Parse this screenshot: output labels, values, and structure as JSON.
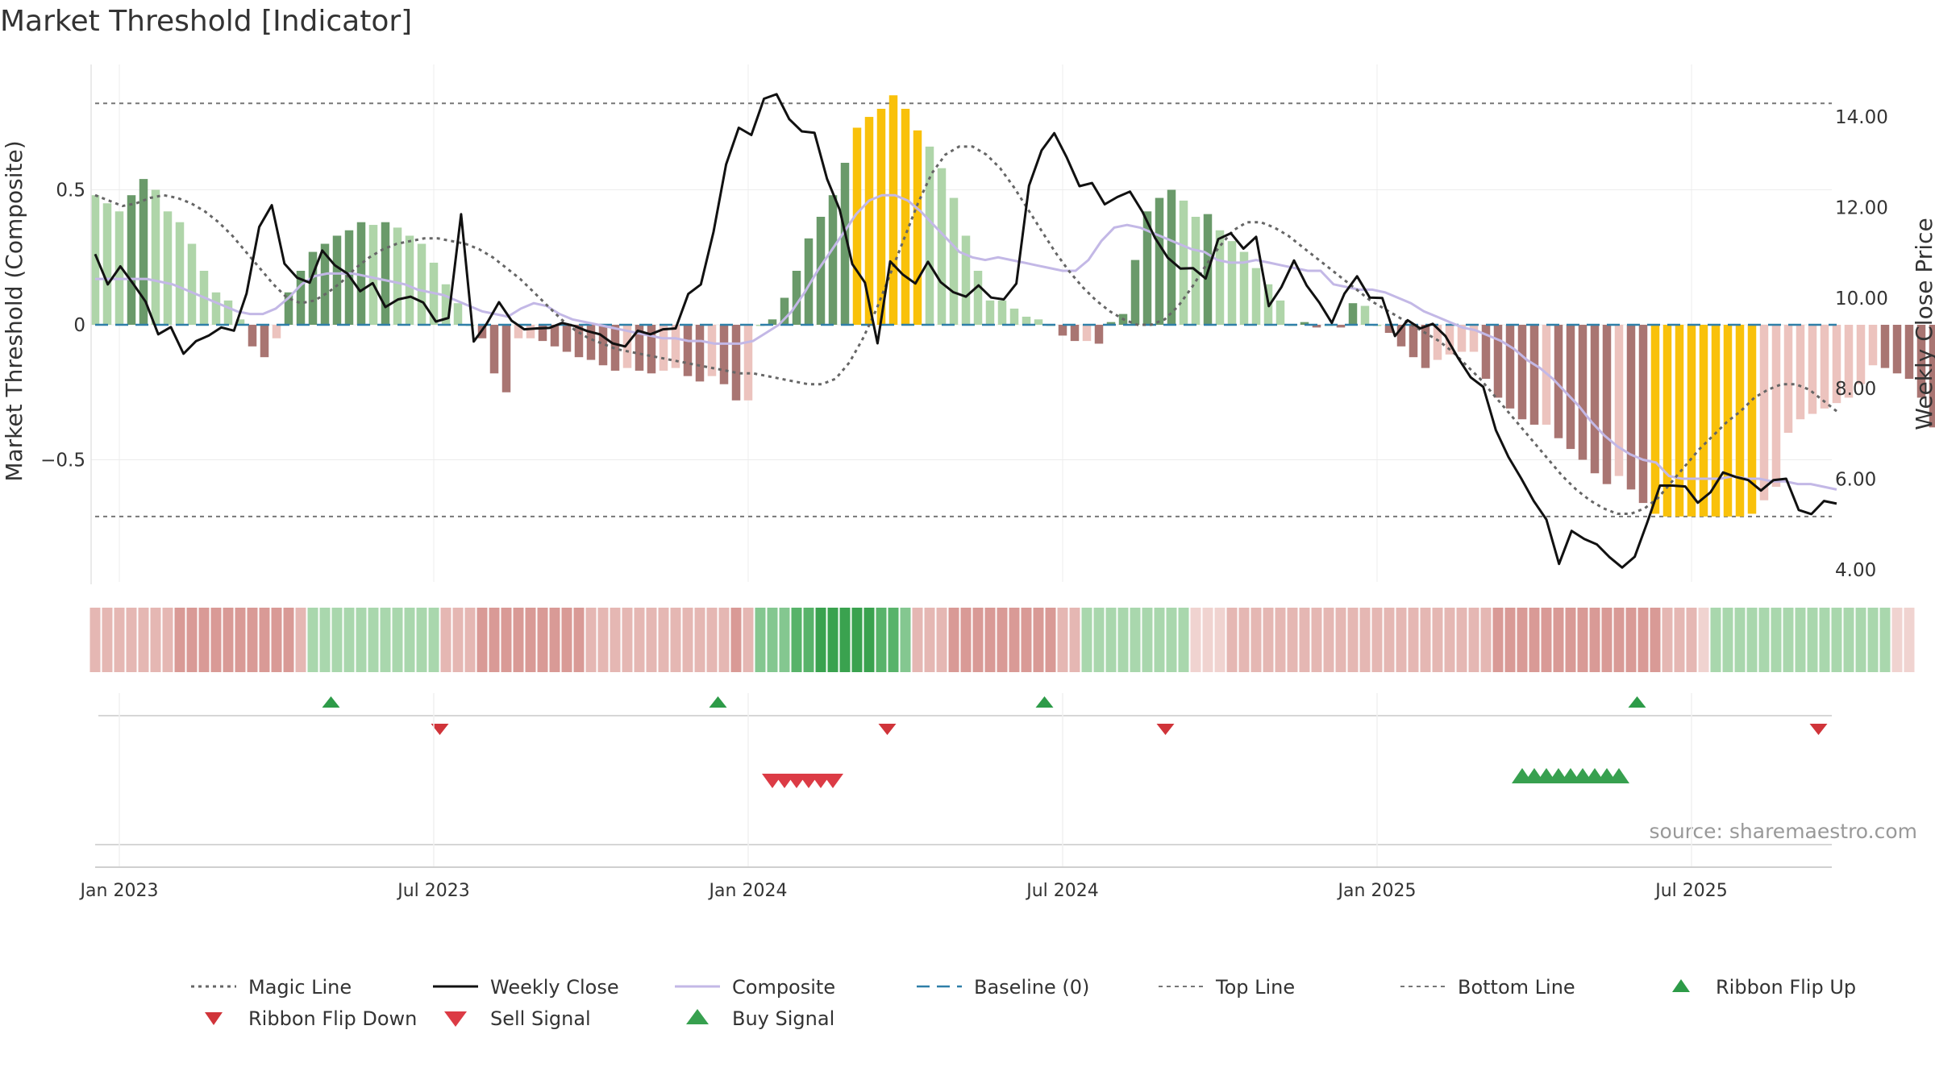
{
  "chart_data": {
    "type": "composite-indicator",
    "title": "Market Threshold [Indicator]",
    "ylabel_left": "Market Threshold (Composite)",
    "ylabel_right": "Weekly Close Price",
    "ylim_left": [
      -0.96,
      0.98
    ],
    "ylim_right": [
      3.5,
      15.0
    ],
    "left_ticks": [
      {
        "value": 0.5,
        "label": "0.5"
      },
      {
        "value": 0,
        "label": "0"
      },
      {
        "value": -0.5,
        "label": "−0.5"
      }
    ],
    "right_ticks": [
      {
        "value": 14,
        "label": "14.00"
      },
      {
        "value": 12,
        "label": "12.00"
      },
      {
        "value": 10,
        "label": "10.00"
      },
      {
        "value": 8,
        "label": "8.00"
      },
      {
        "value": 6,
        "label": "6.00"
      },
      {
        "value": 4,
        "label": "4.00"
      }
    ],
    "x_ticks": [
      {
        "week": 2,
        "label": "Jan 2023"
      },
      {
        "week": 28,
        "label": "Jul 2023"
      },
      {
        "week": 54,
        "label": "Jan 2024"
      },
      {
        "week": 80,
        "label": "Jul 2024"
      },
      {
        "week": 106,
        "label": "Jan 2025"
      },
      {
        "week": 132,
        "label": "Jul 2025"
      }
    ],
    "weeks": 145,
    "top_line": 0.82,
    "bottom_line": -0.71,
    "baseline": 0,
    "composite": [
      0.48,
      0.45,
      0.42,
      0.48,
      0.54,
      0.5,
      0.42,
      0.38,
      0.3,
      0.2,
      0.12,
      0.09,
      0.02,
      -0.08,
      -0.12,
      -0.05,
      0.12,
      0.2,
      0.27,
      0.3,
      0.33,
      0.35,
      0.38,
      0.37,
      0.38,
      0.36,
      0.33,
      0.3,
      0.23,
      0.15,
      0.08,
      0.0,
      -0.05,
      -0.18,
      -0.25,
      -0.05,
      -0.05,
      -0.06,
      -0.08,
      -0.1,
      -0.12,
      -0.13,
      -0.15,
      -0.17,
      -0.16,
      -0.17,
      -0.18,
      -0.17,
      -0.16,
      -0.19,
      -0.21,
      -0.19,
      -0.22,
      -0.28,
      -0.28,
      0.0,
      0.02,
      0.1,
      0.2,
      0.32,
      0.4,
      0.48,
      0.6,
      0.73,
      0.77,
      0.8,
      0.85,
      0.8,
      0.72,
      0.66,
      0.58,
      0.47,
      0.33,
      0.2,
      0.09,
      0.09,
      0.06,
      0.03,
      0.02,
      0.0,
      -0.04,
      -0.06,
      -0.06,
      -0.07,
      0.01,
      0.04,
      0.24,
      0.42,
      0.47,
      0.5,
      0.46,
      0.4,
      0.41,
      0.35,
      0.31,
      0.27,
      0.21,
      0.15,
      0.09,
      0.0,
      0.01,
      -0.01,
      0.0,
      -0.01,
      0.08,
      0.07,
      0.0,
      -0.03,
      -0.08,
      -0.12,
      -0.16,
      -0.13,
      -0.11,
      -0.1,
      -0.1,
      -0.2,
      -0.27,
      -0.31,
      -0.35,
      -0.37,
      -0.37,
      -0.42,
      -0.46,
      -0.5,
      -0.55,
      -0.59,
      -0.56,
      -0.61,
      -0.66,
      -0.7,
      -0.71,
      -0.71,
      -0.71,
      -0.71,
      -0.71,
      -0.71,
      -0.71,
      -0.7,
      -0.65,
      -0.6,
      -0.4,
      -0.35,
      -0.33,
      -0.31,
      -0.29,
      -0.27,
      -0.22,
      -0.15,
      -0.16,
      -0.18,
      -0.2,
      -0.27,
      -0.38,
      -0.4,
      -0.43
    ],
    "composite_line": [
      0.17,
      0.17,
      0.17,
      0.17,
      0.17,
      0.16,
      0.15,
      0.13,
      0.11,
      0.09,
      0.07,
      0.05,
      0.04,
      0.04,
      0.06,
      0.1,
      0.15,
      0.18,
      0.19,
      0.19,
      0.19,
      0.18,
      0.17,
      0.16,
      0.15,
      0.13,
      0.12,
      0.11,
      0.09,
      0.07,
      0.05,
      0.04,
      0.03,
      0.06,
      0.08,
      0.07,
      0.04,
      0.02,
      0.01,
      0.0,
      -0.01,
      -0.02,
      -0.03,
      -0.04,
      -0.05,
      -0.05,
      -0.06,
      -0.06,
      -0.07,
      -0.07,
      -0.07,
      -0.06,
      -0.03,
      0.0,
      0.05,
      0.12,
      0.2,
      0.27,
      0.34,
      0.41,
      0.46,
      0.48,
      0.48,
      0.46,
      0.42,
      0.37,
      0.32,
      0.27,
      0.25,
      0.24,
      0.25,
      0.24,
      0.23,
      0.22,
      0.21,
      0.2,
      0.2,
      0.24,
      0.31,
      0.36,
      0.37,
      0.36,
      0.34,
      0.32,
      0.3,
      0.28,
      0.27,
      0.24,
      0.23,
      0.23,
      0.24,
      0.23,
      0.22,
      0.21,
      0.2,
      0.2,
      0.15,
      0.14,
      0.13,
      0.13,
      0.12,
      0.1,
      0.08,
      0.05,
      0.03,
      0.01,
      -0.01,
      -0.02,
      -0.04,
      -0.06,
      -0.09,
      -0.13,
      -0.16,
      -0.2,
      -0.25,
      -0.3,
      -0.36,
      -0.41,
      -0.45,
      -0.48,
      -0.5,
      -0.51,
      -0.56,
      -0.57,
      -0.57,
      -0.57,
      -0.57,
      -0.56,
      -0.57,
      -0.57,
      -0.58,
      -0.58,
      -0.59,
      -0.59,
      -0.6,
      -0.61
    ],
    "magic_line": [
      0.48,
      0.46,
      0.44,
      0.45,
      0.47,
      0.48,
      0.47,
      0.45,
      0.42,
      0.38,
      0.33,
      0.27,
      0.21,
      0.15,
      0.1,
      0.08,
      0.09,
      0.12,
      0.16,
      0.21,
      0.25,
      0.28,
      0.3,
      0.31,
      0.32,
      0.32,
      0.31,
      0.3,
      0.28,
      0.25,
      0.21,
      0.17,
      0.12,
      0.07,
      0.02,
      -0.02,
      -0.05,
      -0.07,
      -0.09,
      -0.1,
      -0.11,
      -0.12,
      -0.13,
      -0.14,
      -0.15,
      -0.16,
      -0.17,
      -0.18,
      -0.18,
      -0.19,
      -0.2,
      -0.21,
      -0.22,
      -0.22,
      -0.2,
      -0.14,
      -0.05,
      0.06,
      0.19,
      0.32,
      0.45,
      0.56,
      0.63,
      0.66,
      0.66,
      0.63,
      0.58,
      0.51,
      0.43,
      0.35,
      0.27,
      0.2,
      0.14,
      0.09,
      0.05,
      0.02,
      0.0,
      0.0,
      0.02,
      0.07,
      0.14,
      0.22,
      0.29,
      0.35,
      0.38,
      0.38,
      0.36,
      0.33,
      0.29,
      0.25,
      0.21,
      0.17,
      0.13,
      0.09,
      0.06,
      0.03,
      0.0,
      -0.03,
      -0.06,
      -0.1,
      -0.15,
      -0.2,
      -0.26,
      -0.32,
      -0.38,
      -0.44,
      -0.5,
      -0.56,
      -0.61,
      -0.65,
      -0.68,
      -0.7,
      -0.7,
      -0.68,
      -0.64,
      -0.58,
      -0.52,
      -0.46,
      -0.41,
      -0.36,
      -0.32,
      -0.27,
      -0.24,
      -0.22,
      -0.22,
      -0.24,
      -0.28,
      -0.32
    ],
    "price": [
      10.97,
      10.3,
      10.7,
      10.32,
      9.92,
      9.2,
      9.36,
      8.77,
      9.05,
      9.17,
      9.35,
      9.28,
      10.1,
      11.57,
      12.05,
      10.76,
      10.45,
      10.34,
      11.05,
      10.72,
      10.54,
      10.15,
      10.33,
      9.8,
      9.97,
      10.03,
      9.9,
      9.48,
      9.56,
      11.85,
      9.04,
      9.42,
      9.91,
      9.5,
      9.31,
      9.33,
      9.34,
      9.45,
      9.38,
      9.27,
      9.2,
      9.0,
      8.93,
      9.28,
      9.2,
      9.31,
      9.33,
      10.09,
      10.3,
      11.46,
      12.95,
      13.76,
      13.6,
      14.4,
      14.5,
      13.95,
      13.68,
      13.65,
      12.63,
      11.95,
      10.75,
      10.34,
      9.0,
      10.81,
      10.52,
      10.32,
      10.8,
      10.35,
      10.13,
      10.03,
      10.28,
      10.01,
      9.97,
      10.32,
      12.48,
      13.26,
      13.64,
      13.1,
      12.47,
      12.54,
      12.07,
      12.23,
      12.35,
      11.9,
      11.32,
      10.89,
      10.65,
      10.66,
      10.43,
      11.3,
      11.43,
      11.09,
      11.35,
      9.82,
      10.24,
      10.83,
      10.28,
      9.9,
      9.45,
      10.1,
      10.48,
      10.01,
      10.0,
      9.16,
      9.51,
      9.33,
      9.43,
      9.16,
      8.68,
      8.25,
      8.04,
      7.08,
      6.49,
      6.02,
      5.52,
      5.11,
      4.13,
      4.86,
      4.68,
      4.56,
      4.28,
      4.05,
      4.29,
      5.05,
      5.86,
      5.86,
      5.84,
      5.48,
      5.71,
      6.15,
      6.05,
      5.98,
      5.75,
      5.98,
      6.01,
      5.32,
      5.23,
      5.52,
      5.46
    ],
    "ribbon": [
      -2,
      -2,
      -2,
      -2,
      -2,
      -2,
      -2,
      -3,
      -3,
      -3,
      -3,
      -3,
      -3,
      -3,
      -3,
      -3,
      -3,
      -2,
      1,
      1,
      1,
      1,
      1,
      1,
      1,
      1,
      1,
      1,
      1,
      -2,
      -2,
      -2,
      -3,
      -3,
      -3,
      -3,
      -3,
      -3,
      -3,
      -3,
      -3,
      -2,
      -2,
      -2,
      -2,
      -2,
      -2,
      -2,
      -2,
      -2,
      -2,
      -2,
      -2,
      -3,
      -2,
      2,
      2,
      2,
      3,
      3,
      4,
      4,
      4,
      4,
      4,
      3,
      3,
      2,
      -2,
      -2,
      -2,
      -3,
      -3,
      -3,
      -3,
      -3,
      -3,
      -3,
      -3,
      -3,
      -2,
      -2,
      1,
      1,
      1,
      1,
      1,
      1,
      1,
      1,
      1,
      -1,
      -1,
      -1,
      -2,
      -2,
      -2,
      -2,
      -2,
      -2,
      -2,
      -2,
      -2,
      -2,
      -2,
      -2,
      -2,
      -2,
      -2,
      -2,
      -2,
      -2,
      -2,
      -2,
      -2,
      -2,
      -3,
      -3,
      -3,
      -3,
      -3,
      -3,
      -3,
      -3,
      -3,
      -3,
      -3,
      -3,
      -3,
      -3,
      -2,
      -2,
      -2,
      -1,
      1,
      1,
      1,
      1,
      1,
      1,
      1,
      1,
      1,
      1,
      1,
      1,
      1,
      1,
      1,
      -1,
      -1
    ],
    "ribbon_flip_up": [
      19.5,
      51.5,
      78.5,
      127.5
    ],
    "ribbon_flip_down": [
      28.5,
      65.5,
      88.5,
      142.5
    ],
    "sell_signals": [
      56,
      57,
      58,
      59,
      60,
      61
    ],
    "buy_signals": [
      118,
      119,
      120,
      121,
      122,
      123,
      124,
      125,
      126
    ],
    "legend": [
      {
        "key": "magic",
        "label": "Magic Line"
      },
      {
        "key": "close",
        "label": "Weekly Close"
      },
      {
        "key": "composite",
        "label": "Composite"
      },
      {
        "key": "baseline",
        "label": "Baseline (0)"
      },
      {
        "key": "top",
        "label": "Top Line"
      },
      {
        "key": "bottom",
        "label": "Bottom Line"
      },
      {
        "key": "flipup",
        "label": "Ribbon Flip Up"
      },
      {
        "key": "flipdown",
        "label": "Ribbon Flip Down"
      },
      {
        "key": "sell",
        "label": "Sell Signal"
      },
      {
        "key": "buy",
        "label": "Buy Signal"
      }
    ],
    "legend_position": "bottom",
    "colors": {
      "bull_strong": "#6a9a6a",
      "bull_weak": "#afd5a9",
      "bear_strong": "#a97572",
      "bear_weak": "#ecc3be",
      "extreme": "#f9c10a",
      "price": "#111111",
      "composite_line": "#c3b8e6",
      "magic_line": "#666666",
      "baseline": "#2f7fa8",
      "threshold": "#777777",
      "flip_up": "#2d9b48",
      "flip_down": "#d0343a",
      "sell": "#dc3b45",
      "buy": "#37a04f"
    },
    "source": "source: sharemaestro.com"
  }
}
